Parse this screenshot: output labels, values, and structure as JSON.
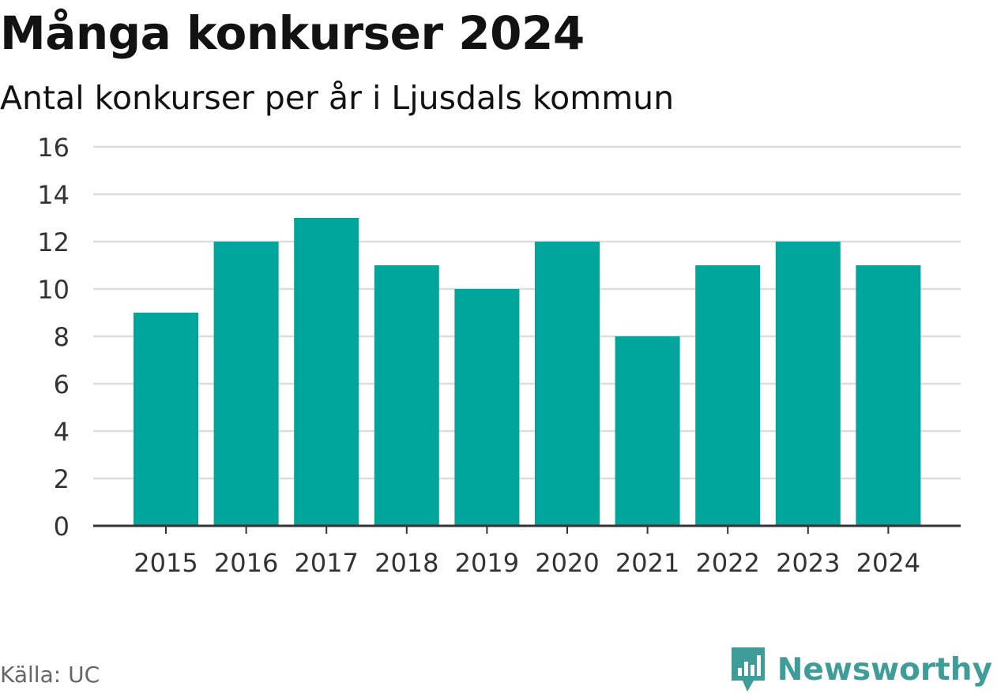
{
  "header": {
    "title": "Många konkurser 2024",
    "subtitle": "Antal konkurser per år i Ljusdals kommun"
  },
  "footer": {
    "source": "Källa: UC",
    "brand": "Newsworthy",
    "brand_icon": "newsworthy-logo-icon"
  },
  "colors": {
    "bar": "#00a59b",
    "grid": "#dddddd",
    "axis": "#333333",
    "brand": "#3f9d99"
  },
  "chart_data": {
    "type": "bar",
    "title": "Många konkurser 2024",
    "subtitle": "Antal konkurser per år i Ljusdals kommun",
    "categories": [
      "2015",
      "2016",
      "2017",
      "2018",
      "2019",
      "2020",
      "2021",
      "2022",
      "2023",
      "2024"
    ],
    "values": [
      9,
      12,
      13,
      11,
      10,
      12,
      8,
      11,
      12,
      11
    ],
    "xlabel": "",
    "ylabel": "",
    "ylim": [
      0,
      16
    ],
    "yticks": [
      0,
      2,
      4,
      6,
      8,
      10,
      12,
      14,
      16
    ],
    "grid": true,
    "legend": "none"
  }
}
